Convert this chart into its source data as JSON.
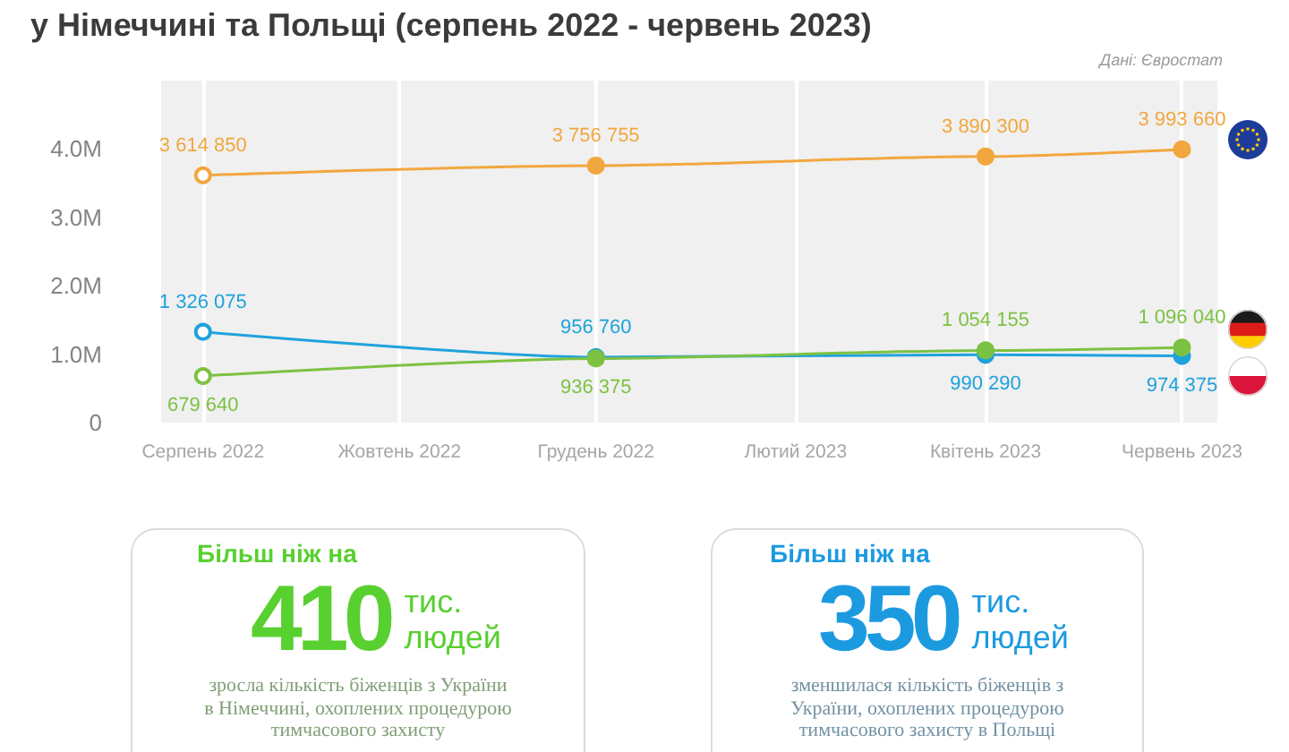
{
  "chart_data": [
    {
      "type": "line",
      "title": "у Німеччині та Польщі (серпень 2022 - червень 2023)",
      "annotations": [
        "Дані: Євростат"
      ],
      "x": [
        "2022-08",
        "2022-12",
        "2023-04",
        "2023-06"
      ],
      "series": [
        {
          "color": "#f2a73e",
          "values": [
            3614850,
            3756755,
            3890300,
            3993660
          ],
          "value_labels": [
            "3 614 850",
            "3 756 755",
            "3 890 300",
            "3 993 660"
          ]
        },
        {
          "color": "#7cc242",
          "values": [
            679640,
            936375,
            1054155,
            1096040
          ],
          "value_labels": [
            "679 640",
            "936 375",
            "1 054 155",
            "1 096 040"
          ]
        },
        {
          "color": "#1fa2dc",
          "values": [
            1326075,
            956760,
            990290,
            974375
          ],
          "value_labels": [
            "1 326 075",
            "956 760",
            "990 290",
            "974 375"
          ]
        }
      ],
      "xlim": [
        "2022-07-19",
        "2023-06-12"
      ],
      "xticks": [
        {
          "value": "2022-08",
          "label": "Серпень 2022"
        },
        {
          "value": "2022-10",
          "label": "Жовтень 2022"
        },
        {
          "value": "2022-12",
          "label": "Грудень 2022"
        },
        {
          "value": "2023-02",
          "label": "Лютий 2023"
        },
        {
          "value": "2023-04",
          "label": "Квітень 2023"
        },
        {
          "value": "2023-06",
          "label": "Червень 2023"
        }
      ],
      "ylim": [
        0,
        5000000
      ],
      "yticks": [
        0,
        {
          "value": 1000000,
          "label": "1.0M"
        },
        {
          "value": 2000000,
          "label": "2.0M"
        },
        {
          "value": 3000000,
          "label": "3.0M"
        },
        {
          "value": 4000000,
          "label": "4.0M"
        }
      ],
      "grid": "x",
      "marker": "circle",
      "line_style": "solid"
    },
    {
      "type": "other",
      "title": "Більш ніж на",
      "values": [
        410
      ],
      "data_labels": true,
      "annotations": [
        "тис. людей",
        "зросла кількість біженців з України в Німеччині, охоплених процедурою тимчасового захисту"
      ],
      "color": "#58d030"
    },
    {
      "type": "other",
      "title": "Більш ніж на",
      "values": [
        350
      ],
      "data_labels": true,
      "annotations": [
        "тис. людей",
        "зменшилася кількість біженців з України, охоплених процедурою тимчасового захисту в Польщі"
      ],
      "color": "#1c9ae0"
    }
  ]
}
